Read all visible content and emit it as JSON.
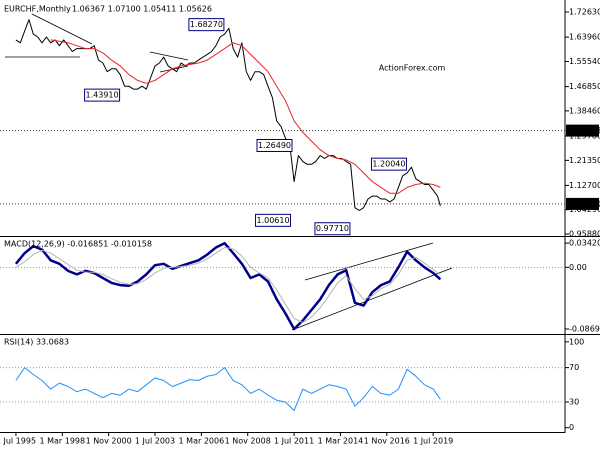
{
  "chart_data": [
    {
      "type": "line",
      "title": "EURCHF,Monthly",
      "subtitle": "1.06367 1.07100 1.05411 1.05626",
      "watermark": "ActionForex.com",
      "xlim": [
        "1994-08",
        "2027-02"
      ],
      "ylim": [
        0.952,
        1.761
      ],
      "grid": false,
      "yticks": [
        {
          "value": 1.7263,
          "label": "1.72630"
        },
        {
          "value": 1.6396,
          "label": "1.63960"
        },
        {
          "value": 1.5554,
          "label": "1.55540"
        },
        {
          "value": 1.4685,
          "label": "1.46850"
        },
        {
          "value": 1.3846,
          "label": "1.38460"
        },
        {
          "value": 1.2978,
          "label": "1.29780"
        },
        {
          "value": 1.2135,
          "label": "1.21350"
        },
        {
          "value": 1.127,
          "label": "1.12700"
        },
        {
          "value": 1.0429,
          "label": "1.04290"
        },
        {
          "value": 0.9588,
          "label": "0.95880"
        }
      ],
      "levels": [
        1.31638,
        {
          "value": 1.0629,
          "label": "1.06290"
        }
      ],
      "annotations": [
        {
          "x": "2007-10",
          "value": 1.6827,
          "label": "1.68270"
        },
        {
          "x": "2001-10",
          "value": 1.4391,
          "label": "1.43910"
        },
        {
          "x": "2011-09",
          "value": 1.2649,
          "label": "1.26490"
        },
        {
          "x": "2018-04",
          "value": 1.2004,
          "label": "1.20040"
        },
        {
          "x": "2011-08",
          "value": 1.0061,
          "label": "1.00610"
        },
        {
          "x": "2015-01",
          "value": 0.9771,
          "label": "0.97710"
        }
      ],
      "series": [
        {
          "color": "#000000",
          "x": [
            "1995-07",
            "1995-10",
            "1996-01",
            "1996-04",
            "1996-07",
            "1996-10",
            "1997-01",
            "1997-04",
            "1997-07",
            "1997-10",
            "1998-01",
            "1998-04",
            "1998-07",
            "1998-10",
            "1999-01",
            "1999-04",
            "1999-07",
            "1999-10",
            "2000-01",
            "2000-04",
            "2000-07",
            "2000-10",
            "2001-01",
            "2001-04",
            "2001-07",
            "2001-10",
            "2002-01",
            "2002-04",
            "2002-07",
            "2002-10",
            "2003-01",
            "2003-04",
            "2003-07",
            "2003-10",
            "2004-01",
            "2004-04",
            "2004-07",
            "2004-10",
            "2005-01",
            "2005-04",
            "2005-07",
            "2005-10",
            "2006-01",
            "2006-04",
            "2006-07",
            "2006-10",
            "2007-01",
            "2007-04",
            "2007-07",
            "2007-10",
            "2008-01",
            "2008-04",
            "2008-07",
            "2008-10",
            "2009-01",
            "2009-04",
            "2009-07",
            "2009-10",
            "2010-01",
            "2010-04",
            "2010-07",
            "2010-10",
            "2011-01",
            "2011-04",
            "2011-07",
            "2011-10",
            "2012-01",
            "2012-04",
            "2012-07",
            "2012-10",
            "2013-01",
            "2013-04",
            "2013-07",
            "2013-10",
            "2014-01",
            "2014-04",
            "2014-07",
            "2014-10",
            "2015-01",
            "2015-04",
            "2015-07",
            "2015-10",
            "2016-01",
            "2016-04",
            "2016-07",
            "2016-10",
            "2017-01",
            "2017-04",
            "2017-07",
            "2017-10",
            "2018-01",
            "2018-04",
            "2018-07",
            "2018-10",
            "2019-01",
            "2019-04",
            "2019-07",
            "2019-10",
            "2019-12"
          ],
          "values": [
            1.63,
            1.62,
            1.66,
            1.7,
            1.65,
            1.64,
            1.62,
            1.64,
            1.62,
            1.63,
            1.61,
            1.63,
            1.61,
            1.59,
            1.6,
            1.6,
            1.6,
            1.6,
            1.61,
            1.56,
            1.55,
            1.52,
            1.53,
            1.53,
            1.51,
            1.47,
            1.47,
            1.46,
            1.46,
            1.47,
            1.46,
            1.5,
            1.54,
            1.55,
            1.57,
            1.54,
            1.53,
            1.52,
            1.55,
            1.54,
            1.55,
            1.55,
            1.56,
            1.57,
            1.58,
            1.59,
            1.61,
            1.64,
            1.65,
            1.67,
            1.6,
            1.57,
            1.62,
            1.52,
            1.49,
            1.52,
            1.52,
            1.51,
            1.47,
            1.43,
            1.35,
            1.33,
            1.29,
            1.27,
            1.14,
            1.23,
            1.21,
            1.2,
            1.2,
            1.21,
            1.23,
            1.22,
            1.23,
            1.23,
            1.22,
            1.22,
            1.21,
            1.2,
            1.05,
            1.04,
            1.05,
            1.08,
            1.09,
            1.09,
            1.08,
            1.08,
            1.07,
            1.08,
            1.12,
            1.16,
            1.17,
            1.19,
            1.15,
            1.14,
            1.13,
            1.13,
            1.11,
            1.09,
            1.05626
          ]
        },
        {
          "color": "#e8262a",
          "x": [
            "1997-07",
            "1998-01",
            "1998-07",
            "1999-01",
            "1999-07",
            "2000-01",
            "2000-07",
            "2001-01",
            "2001-07",
            "2002-01",
            "2002-07",
            "2003-01",
            "2003-07",
            "2004-01",
            "2004-07",
            "2005-01",
            "2005-07",
            "2006-01",
            "2006-07",
            "2007-01",
            "2007-07",
            "2008-01",
            "2008-07",
            "2009-01",
            "2009-07",
            "2010-01",
            "2010-07",
            "2011-01",
            "2011-07",
            "2012-01",
            "2012-07",
            "2013-01",
            "2013-07",
            "2014-01",
            "2014-07",
            "2015-01",
            "2015-07",
            "2016-01",
            "2016-07",
            "2017-01",
            "2017-07",
            "2018-01",
            "2018-07",
            "2019-01",
            "2019-07",
            "2019-12"
          ],
          "values": [
            1.63,
            1.625,
            1.62,
            1.61,
            1.6,
            1.6,
            1.585,
            1.56,
            1.54,
            1.51,
            1.49,
            1.48,
            1.49,
            1.51,
            1.53,
            1.54,
            1.545,
            1.55,
            1.56,
            1.58,
            1.6,
            1.62,
            1.61,
            1.58,
            1.55,
            1.52,
            1.47,
            1.42,
            1.35,
            1.31,
            1.28,
            1.25,
            1.23,
            1.22,
            1.215,
            1.2,
            1.17,
            1.14,
            1.12,
            1.1,
            1.1,
            1.12,
            1.13,
            1.135,
            1.13,
            1.12
          ]
        }
      ]
    },
    {
      "type": "line",
      "title": "MACD(12,26,9) -0.016851 -0.010158",
      "xlim": [
        "1994-08",
        "2027-02"
      ],
      "ylim": [
        -0.0926,
        0.0428
      ],
      "grid": true,
      "yticks": [
        0.034203,
        {
          "value": 0,
          "label": "0.00"
        },
        -0.086933
      ],
      "series": [
        {
          "color": "#00008b",
          "x": [
            "1995-07",
            "1996-01",
            "1996-07",
            "1997-01",
            "1997-07",
            "1998-01",
            "1998-07",
            "1999-01",
            "1999-07",
            "2000-01",
            "2000-07",
            "2001-01",
            "2001-07",
            "2002-01",
            "2002-07",
            "2003-01",
            "2003-07",
            "2004-01",
            "2004-07",
            "2005-01",
            "2005-07",
            "2006-01",
            "2006-07",
            "2007-01",
            "2007-07",
            "2008-01",
            "2008-07",
            "2009-01",
            "2009-07",
            "2010-01",
            "2010-07",
            "2011-01",
            "2011-07",
            "2012-01",
            "2012-07",
            "2013-01",
            "2013-07",
            "2014-01",
            "2014-07",
            "2015-01",
            "2015-07",
            "2016-01",
            "2016-07",
            "2017-01",
            "2017-07",
            "2018-01",
            "2018-07",
            "2019-01",
            "2019-07",
            "2019-12"
          ],
          "values": [
            0.005,
            0.02,
            0.03,
            0.025,
            0.01,
            0.005,
            -0.005,
            -0.01,
            -0.005,
            -0.008,
            -0.015,
            -0.022,
            -0.025,
            -0.026,
            -0.02,
            -0.01,
            0.003,
            0.005,
            -0.002,
            0.002,
            0.006,
            0.01,
            0.018,
            0.028,
            0.034,
            0.02,
            0.005,
            -0.015,
            -0.01,
            -0.02,
            -0.045,
            -0.065,
            -0.087,
            -0.075,
            -0.06,
            -0.045,
            -0.025,
            -0.01,
            -0.004,
            -0.05,
            -0.054,
            -0.035,
            -0.025,
            -0.02,
            0.0,
            0.022,
            0.01,
            0.0,
            -0.008,
            -0.016851
          ]
        },
        {
          "color": "#b4b4b4",
          "x": [
            "1995-07",
            "1996-01",
            "1996-07",
            "1997-01",
            "1997-07",
            "1998-01",
            "1998-07",
            "1999-01",
            "1999-07",
            "2000-01",
            "2000-07",
            "2001-01",
            "2001-07",
            "2002-01",
            "2002-07",
            "2003-01",
            "2003-07",
            "2004-01",
            "2004-07",
            "2005-01",
            "2005-07",
            "2006-01",
            "2006-07",
            "2007-01",
            "2007-07",
            "2008-01",
            "2008-07",
            "2009-01",
            "2009-07",
            "2010-01",
            "2010-07",
            "2011-01",
            "2011-07",
            "2012-01",
            "2012-07",
            "2013-01",
            "2013-07",
            "2014-01",
            "2014-07",
            "2015-01",
            "2015-07",
            "2016-01",
            "2016-07",
            "2017-01",
            "2017-07",
            "2018-01",
            "2018-07",
            "2019-01",
            "2019-07",
            "2019-12"
          ],
          "values": [
            0.0,
            0.008,
            0.018,
            0.024,
            0.02,
            0.012,
            0.004,
            -0.004,
            -0.007,
            -0.007,
            -0.01,
            -0.016,
            -0.021,
            -0.024,
            -0.023,
            -0.017,
            -0.008,
            -0.001,
            0.0,
            0.001,
            0.003,
            0.006,
            0.012,
            0.02,
            0.028,
            0.026,
            0.016,
            0.0,
            -0.008,
            -0.015,
            -0.032,
            -0.052,
            -0.072,
            -0.078,
            -0.07,
            -0.057,
            -0.04,
            -0.022,
            -0.012,
            -0.03,
            -0.045,
            -0.04,
            -0.03,
            -0.024,
            -0.01,
            0.01,
            0.014,
            0.006,
            -0.003,
            -0.010158
          ]
        }
      ]
    },
    {
      "type": "line",
      "title": "RSI(14) 33.0683",
      "xlim": [
        "1994-08",
        "2027-02"
      ],
      "ylim": [
        -5,
        108
      ],
      "grid": true,
      "yticks": [
        100,
        70,
        30,
        0
      ],
      "xticks": [
        {
          "value": "1995-07",
          "label": "1 Jul 1995"
        },
        {
          "value": "1998-03",
          "label": "1 Mar 1998"
        },
        {
          "value": "2000-11",
          "label": "1 Nov 2000"
        },
        {
          "value": "2003-07",
          "label": "1 Jul 2003"
        },
        {
          "value": "2006-03",
          "label": "1 Mar 2006"
        },
        {
          "value": "2008-11",
          "label": "1 Nov 2008"
        },
        {
          "value": "2011-07",
          "label": "1 Jul 2011"
        },
        {
          "value": "2014-03",
          "label": "1 Mar 2014"
        },
        {
          "value": "2016-11",
          "label": "1 Nov 2016"
        },
        {
          "value": "2019-07",
          "label": "1 Jul 2019"
        }
      ],
      "series": [
        {
          "color": "#1e90ff",
          "x": [
            "1995-07",
            "1996-01",
            "1996-07",
            "1997-01",
            "1997-07",
            "1998-01",
            "1998-07",
            "1999-01",
            "1999-07",
            "2000-01",
            "2000-07",
            "2001-01",
            "2001-07",
            "2002-01",
            "2002-07",
            "2003-01",
            "2003-07",
            "2004-01",
            "2004-07",
            "2005-01",
            "2005-07",
            "2006-01",
            "2006-07",
            "2007-01",
            "2007-07",
            "2008-01",
            "2008-07",
            "2009-01",
            "2009-07",
            "2010-01",
            "2010-07",
            "2011-01",
            "2011-07",
            "2012-01",
            "2012-07",
            "2013-01",
            "2013-07",
            "2014-01",
            "2014-07",
            "2015-01",
            "2015-07",
            "2016-01",
            "2016-07",
            "2017-01",
            "2017-07",
            "2018-01",
            "2018-07",
            "2019-01",
            "2019-07",
            "2019-12"
          ],
          "values": [
            55,
            70,
            62,
            55,
            45,
            52,
            48,
            42,
            45,
            40,
            35,
            40,
            38,
            45,
            42,
            50,
            58,
            55,
            48,
            52,
            56,
            55,
            60,
            62,
            70,
            55,
            50,
            40,
            45,
            38,
            32,
            30,
            20,
            45,
            40,
            45,
            50,
            48,
            45,
            25,
            35,
            48,
            40,
            38,
            45,
            68,
            60,
            50,
            45,
            33.0683
          ]
        }
      ]
    }
  ]
}
